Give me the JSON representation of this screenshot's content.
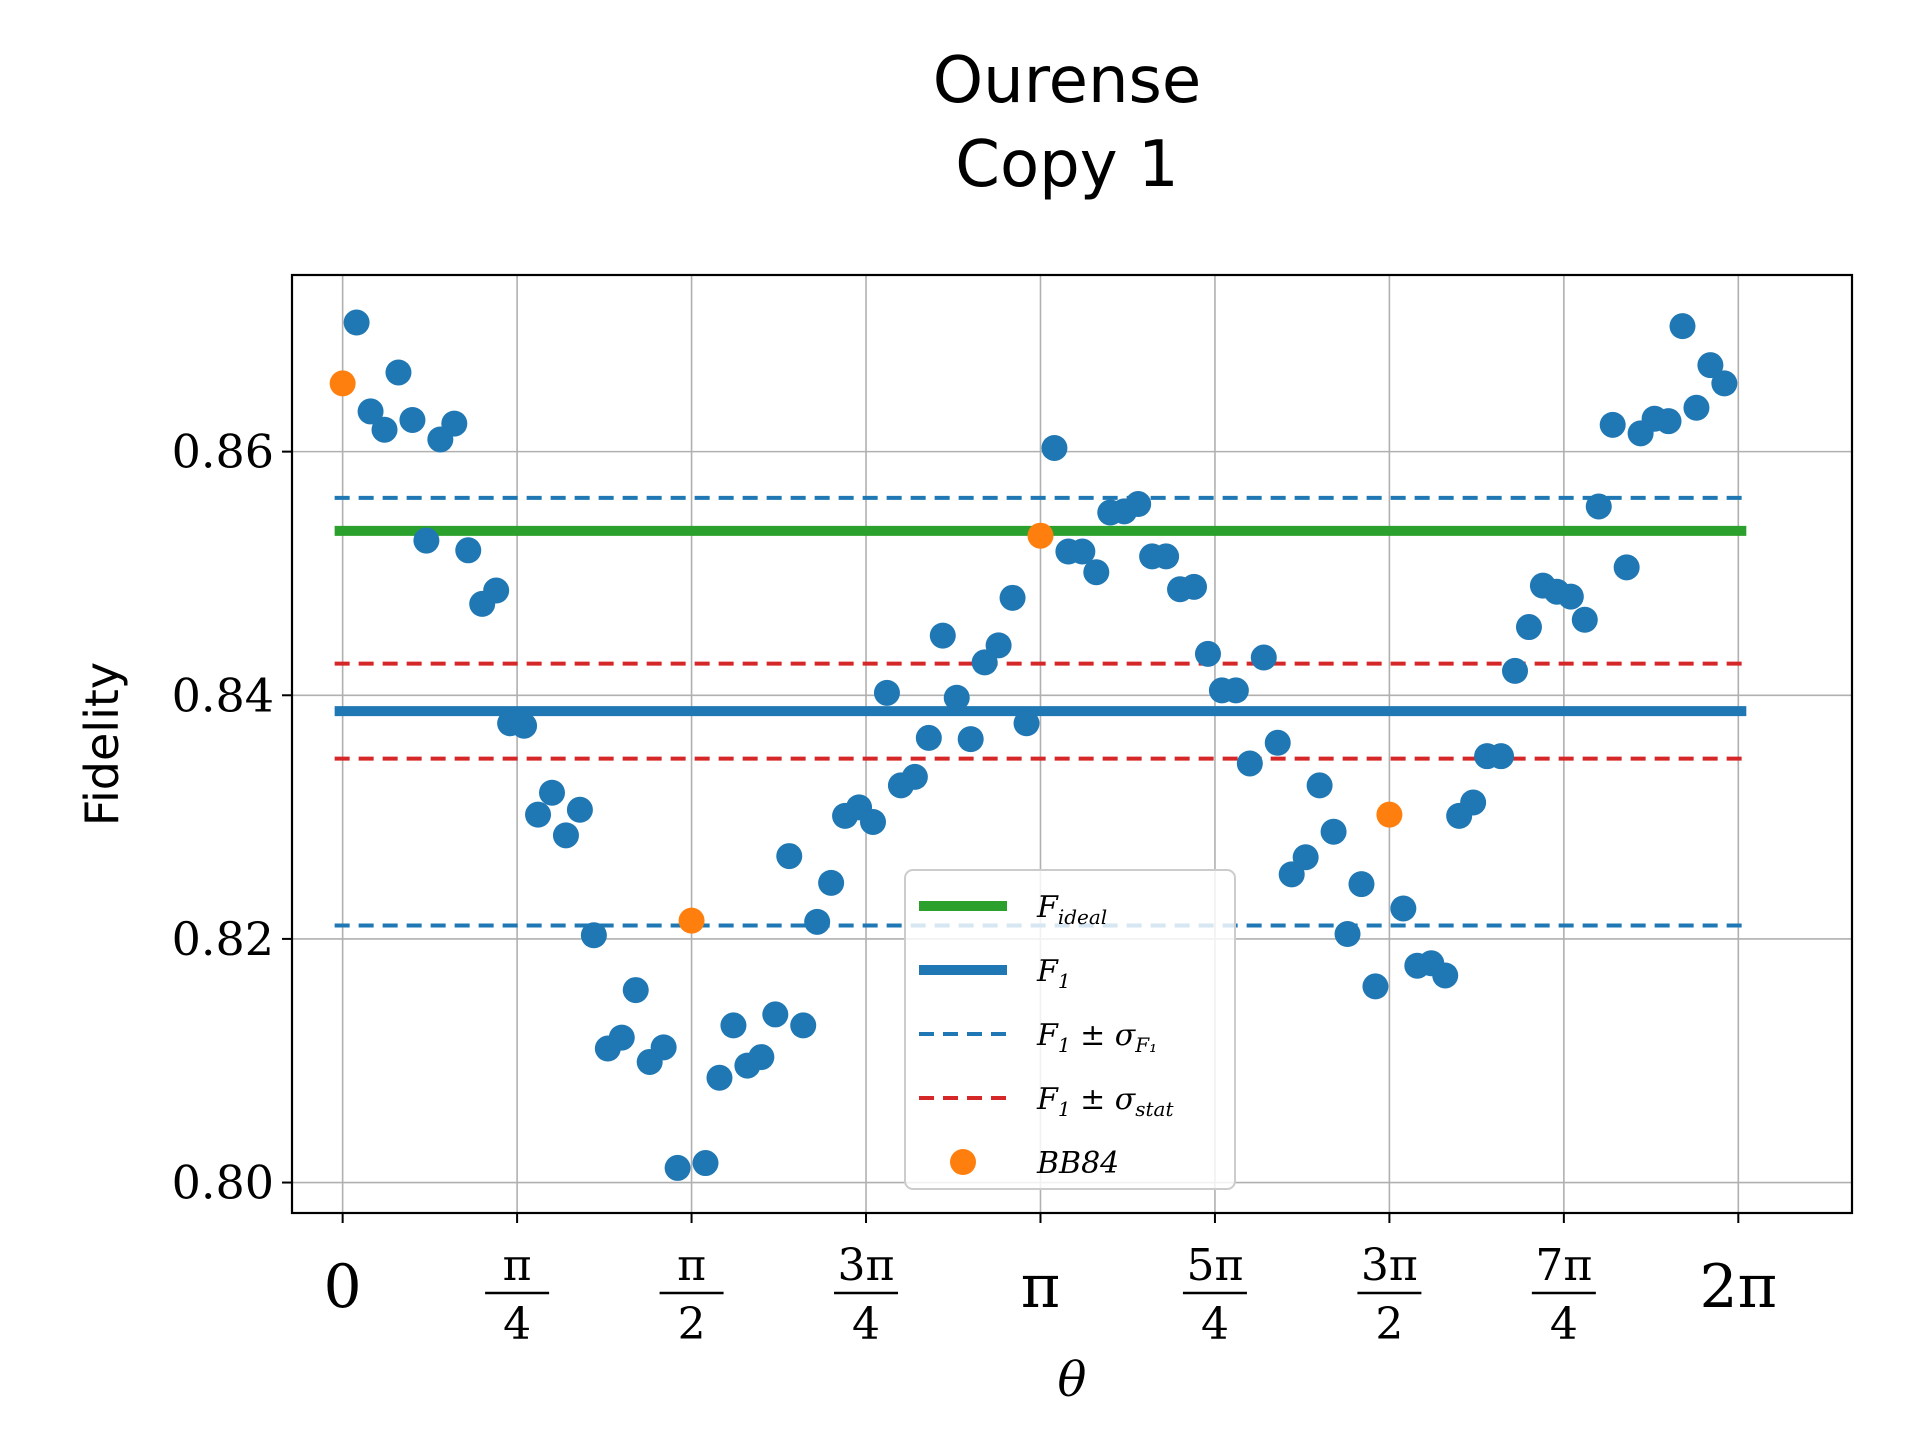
{
  "chart_data": {
    "type": "scatter",
    "title": [
      "Ourense",
      "Copy 1"
    ],
    "xlabel": "θ",
    "ylabel": "Fidelity",
    "xlim": [
      -0.228,
      6.795
    ],
    "ylim": [
      0.7975,
      0.8745
    ],
    "grid": true,
    "legend_position": "lower-center",
    "y_ticks": [
      {
        "value": 0.8,
        "label": "0.80"
      },
      {
        "value": 0.82,
        "label": "0.82"
      },
      {
        "value": 0.84,
        "label": "0.84"
      },
      {
        "value": 0.86,
        "label": "0.86"
      }
    ],
    "x_ticks": [
      {
        "value": 0,
        "num": "0",
        "den": ""
      },
      {
        "value": 0.7854,
        "num": "π",
        "den": "4"
      },
      {
        "value": 1.5708,
        "num": "π",
        "den": "2"
      },
      {
        "value": 2.3562,
        "num": "3π",
        "den": "4"
      },
      {
        "value": 3.1416,
        "num": "π",
        "den": ""
      },
      {
        "value": 3.927,
        "num": "5π",
        "den": "4"
      },
      {
        "value": 4.7124,
        "num": "3π",
        "den": "2"
      },
      {
        "value": 5.4978,
        "num": "7π",
        "den": "4"
      },
      {
        "value": 6.2832,
        "num": "2π",
        "den": ""
      }
    ],
    "lines": [
      {
        "key": "f_ideal",
        "label_main": "F",
        "label_sub": "ideal",
        "y": 0.8535,
        "color": "#2ca02c",
        "style": "solid"
      },
      {
        "key": "f1",
        "label_main": "F",
        "label_sub": "1",
        "y": 0.8387,
        "color": "#1f77b4",
        "style": "solid"
      },
      {
        "key": "f1_sigma_f1",
        "label_main": "F",
        "label_sub": "1",
        "label_rest": " ± σ",
        "label_rest_sub": "F₁",
        "y_values": [
          0.8562,
          0.8211
        ],
        "color": "#1f77b4",
        "style": "dashed"
      },
      {
        "key": "f1_sigma_stat",
        "label_main": "F",
        "label_sub": "1",
        "label_rest": " ± σ",
        "label_rest_sub": "stat",
        "y_values": [
          0.8426,
          0.8348
        ],
        "color": "#d62728",
        "style": "dashed"
      }
    ],
    "legend": [
      {
        "type": "line-solid",
        "color": "#2ca02c",
        "main": "F",
        "sub": "ideal",
        "rest": "",
        "rest_sub": ""
      },
      {
        "type": "line-solid",
        "color": "#1f77b4",
        "main": "F",
        "sub": "1",
        "rest": "",
        "rest_sub": ""
      },
      {
        "type": "line-dashed",
        "color": "#1f77b4",
        "main": "F",
        "sub": "1",
        "rest": " ± σ",
        "rest_sub": "F₁"
      },
      {
        "type": "line-dashed",
        "color": "#d62728",
        "main": "F",
        "sub": "1",
        "rest": " ± σ",
        "rest_sub": "stat"
      },
      {
        "type": "marker",
        "color": "#ff7f0e",
        "main": "BB84",
        "sub": "",
        "rest": "",
        "rest_sub": ""
      }
    ],
    "series": [
      {
        "key": "data",
        "color": "#1f77b4",
        "points": [
          [
            0.0628,
            0.8706
          ],
          [
            0.1257,
            0.8633
          ],
          [
            0.1885,
            0.8618
          ],
          [
            0.2513,
            0.8665
          ],
          [
            0.3142,
            0.8626
          ],
          [
            0.377,
            0.8527
          ],
          [
            0.4398,
            0.861
          ],
          [
            0.5027,
            0.8623
          ],
          [
            0.5655,
            0.8519
          ],
          [
            0.6283,
            0.8475
          ],
          [
            0.6912,
            0.8486
          ],
          [
            0.754,
            0.8377
          ],
          [
            0.8168,
            0.8375
          ],
          [
            0.8796,
            0.8302
          ],
          [
            0.9425,
            0.832
          ],
          [
            1.0053,
            0.8285
          ],
          [
            1.0681,
            0.8306
          ],
          [
            1.131,
            0.8203
          ],
          [
            1.1938,
            0.811
          ],
          [
            1.2566,
            0.8119
          ],
          [
            1.3195,
            0.8158
          ],
          [
            1.3823,
            0.8099
          ],
          [
            1.4451,
            0.8111
          ],
          [
            1.508,
            0.8012
          ],
          [
            1.6336,
            0.8016
          ],
          [
            1.6965,
            0.8086
          ],
          [
            1.7593,
            0.8129
          ],
          [
            1.8221,
            0.8096
          ],
          [
            1.885,
            0.8103
          ],
          [
            1.9478,
            0.8138
          ],
          [
            2.0106,
            0.8268
          ],
          [
            2.0735,
            0.8129
          ],
          [
            2.1363,
            0.8214
          ],
          [
            2.1991,
            0.8246
          ],
          [
            2.2619,
            0.8301
          ],
          [
            2.3248,
            0.8308
          ],
          [
            2.3876,
            0.8296
          ],
          [
            2.4504,
            0.8402
          ],
          [
            2.5133,
            0.8326
          ],
          [
            2.5761,
            0.8333
          ],
          [
            2.6389,
            0.8365
          ],
          [
            2.7018,
            0.8449
          ],
          [
            2.7646,
            0.8398
          ],
          [
            2.8274,
            0.8364
          ],
          [
            2.8903,
            0.8427
          ],
          [
            2.9531,
            0.8441
          ],
          [
            3.0159,
            0.848
          ],
          [
            3.0788,
            0.8377
          ],
          [
            3.2044,
            0.8603
          ],
          [
            3.2673,
            0.8518
          ],
          [
            3.3301,
            0.8518
          ],
          [
            3.3929,
            0.8501
          ],
          [
            3.4558,
            0.855
          ],
          [
            3.5186,
            0.8551
          ],
          [
            3.5814,
            0.8557
          ],
          [
            3.6442,
            0.8514
          ],
          [
            3.7071,
            0.8514
          ],
          [
            3.7699,
            0.8487
          ],
          [
            3.8327,
            0.8489
          ],
          [
            3.8956,
            0.8434
          ],
          [
            3.9584,
            0.8404
          ],
          [
            4.0212,
            0.8404
          ],
          [
            4.0841,
            0.8344
          ],
          [
            4.1469,
            0.8431
          ],
          [
            4.2097,
            0.8361
          ],
          [
            4.2726,
            0.8253
          ],
          [
            4.3354,
            0.8267
          ],
          [
            4.3982,
            0.8326
          ],
          [
            4.4611,
            0.8288
          ],
          [
            4.5239,
            0.8204
          ],
          [
            4.5867,
            0.8245
          ],
          [
            4.6496,
            0.8161
          ],
          [
            4.7752,
            0.8225
          ],
          [
            4.8381,
            0.8178
          ],
          [
            4.9009,
            0.818
          ],
          [
            4.9637,
            0.817
          ],
          [
            5.0265,
            0.8301
          ],
          [
            5.0894,
            0.8312
          ],
          [
            5.1522,
            0.835
          ],
          [
            5.215,
            0.835
          ],
          [
            5.2779,
            0.842
          ],
          [
            5.3407,
            0.8456
          ],
          [
            5.4035,
            0.849
          ],
          [
            5.4664,
            0.8485
          ],
          [
            5.5292,
            0.8481
          ],
          [
            5.592,
            0.8462
          ],
          [
            5.6549,
            0.8555
          ],
          [
            5.7177,
            0.8622
          ],
          [
            5.7805,
            0.8505
          ],
          [
            5.8434,
            0.8615
          ],
          [
            5.9062,
            0.8627
          ],
          [
            5.969,
            0.8625
          ],
          [
            6.0319,
            0.8703
          ],
          [
            6.0947,
            0.8636
          ],
          [
            6.1575,
            0.8671
          ],
          [
            6.2204,
            0.8656
          ]
        ]
      },
      {
        "key": "bb84",
        "name": "BB84",
        "color": "#ff7f0e",
        "points": [
          [
            0.0,
            0.8656
          ],
          [
            1.5708,
            0.8215
          ],
          [
            3.1416,
            0.8531
          ],
          [
            4.7124,
            0.8302
          ]
        ]
      }
    ]
  }
}
